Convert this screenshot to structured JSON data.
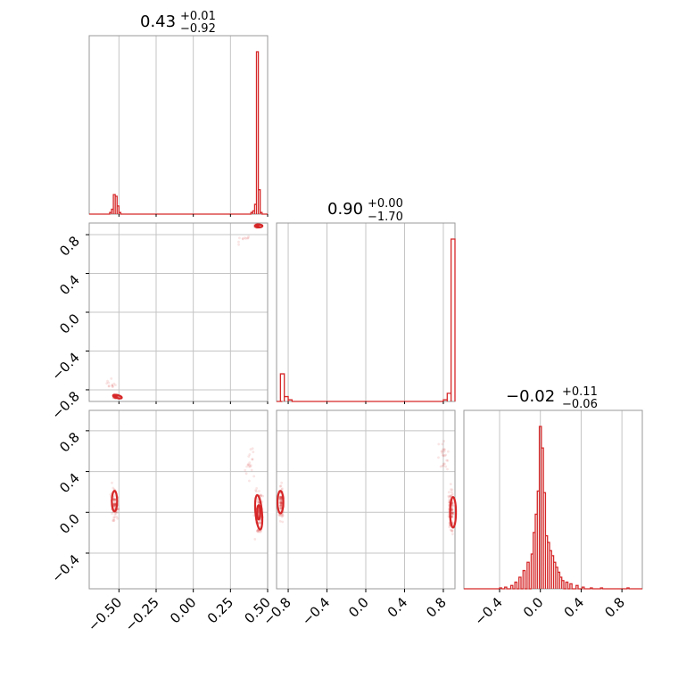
{
  "chart_data": {
    "type": "corner",
    "color": "#d62728",
    "parameters": [
      {
        "median_label": "0.43",
        "upper_label": "+0.01",
        "lower_label": "−0.92",
        "range": [
          -0.7,
          0.5
        ],
        "ticks": [
          -0.5,
          -0.25,
          0.0,
          0.25,
          0.5
        ],
        "tick_labels": [
          "−0.50",
          "−0.25",
          "0.00",
          "0.25",
          "0.50"
        ]
      },
      {
        "median_label": "0.90",
        "upper_label": "+0.00",
        "lower_label": "−1.70",
        "range": [
          -0.92,
          0.92
        ],
        "ticks": [
          -0.8,
          -0.4,
          0.0,
          0.4,
          0.8
        ],
        "tick_labels": [
          "−0.8",
          "−0.4",
          "0.0",
          "0.4",
          "0.8"
        ]
      },
      {
        "median_label": "−0.02",
        "upper_label": "+0.11",
        "lower_label": "−0.06",
        "range": [
          -0.75,
          1.0
        ],
        "ticks": [
          -0.4,
          0.0,
          0.4,
          0.8
        ],
        "tick_labels": [
          "−0.4",
          "0.0",
          "0.4",
          "0.8"
        ]
      }
    ],
    "lower_ticks_p3": [
      -0.4,
      0.0,
      0.4,
      0.8
    ],
    "lower_tick_labels_p3": [
      "−0.4",
      "0.0",
      "0.4",
      "0.8"
    ],
    "hist1": {
      "start": -0.7,
      "width": 0.0125,
      "counts": {
        "-0.5625": 0.01,
        "-0.55": 0.03,
        "-0.5375": 0.12,
        "-0.525": 0.11,
        "-0.5125": 0.05,
        "-0.5": 0.01,
        "0.3875": 0.01,
        "0.4": 0.02,
        "0.4125": 0.06,
        "0.425": 1.0,
        "0.4375": 0.15,
        "0.45": 0.01
      }
    },
    "hist2": {
      "start": -0.92,
      "width": 0.04,
      "counts": {
        "-0.9": 0.0,
        "-0.88": 0.17,
        "-0.84": 0.03,
        "-0.8": 0.01,
        "0.8": 0.01,
        "0.84": 0.05,
        "0.88": 1.0
      }
    },
    "hist3": {
      "start": -0.75,
      "width": 0.02,
      "counts": {
        "-0.45": 0.0,
        "-0.4": 0.005,
        "-0.35": 0.01,
        "-0.29": 0.02,
        "-0.25": 0.04,
        "-0.21": 0.07,
        "-0.17": 0.11,
        "-0.13": 0.16,
        "-0.09": 0.21,
        "-0.07": 0.34,
        "-0.05": 0.45,
        "-0.03": 0.59,
        "-0.01": 0.98,
        "0.01": 0.85,
        "0.03": 0.58,
        "0.05": 0.32,
        "0.07": 0.28,
        "0.09": 0.23,
        "0.11": 0.2,
        "0.13": 0.16,
        "0.15": 0.13,
        "0.17": 0.1,
        "0.19": 0.07,
        "0.21": 0.05,
        "0.25": 0.04,
        "0.29": 0.03,
        "0.35": 0.02,
        "0.41": 0.01,
        "0.49": 0.005,
        "0.59": 0.005,
        "0.85": 0.005
      }
    }
  }
}
